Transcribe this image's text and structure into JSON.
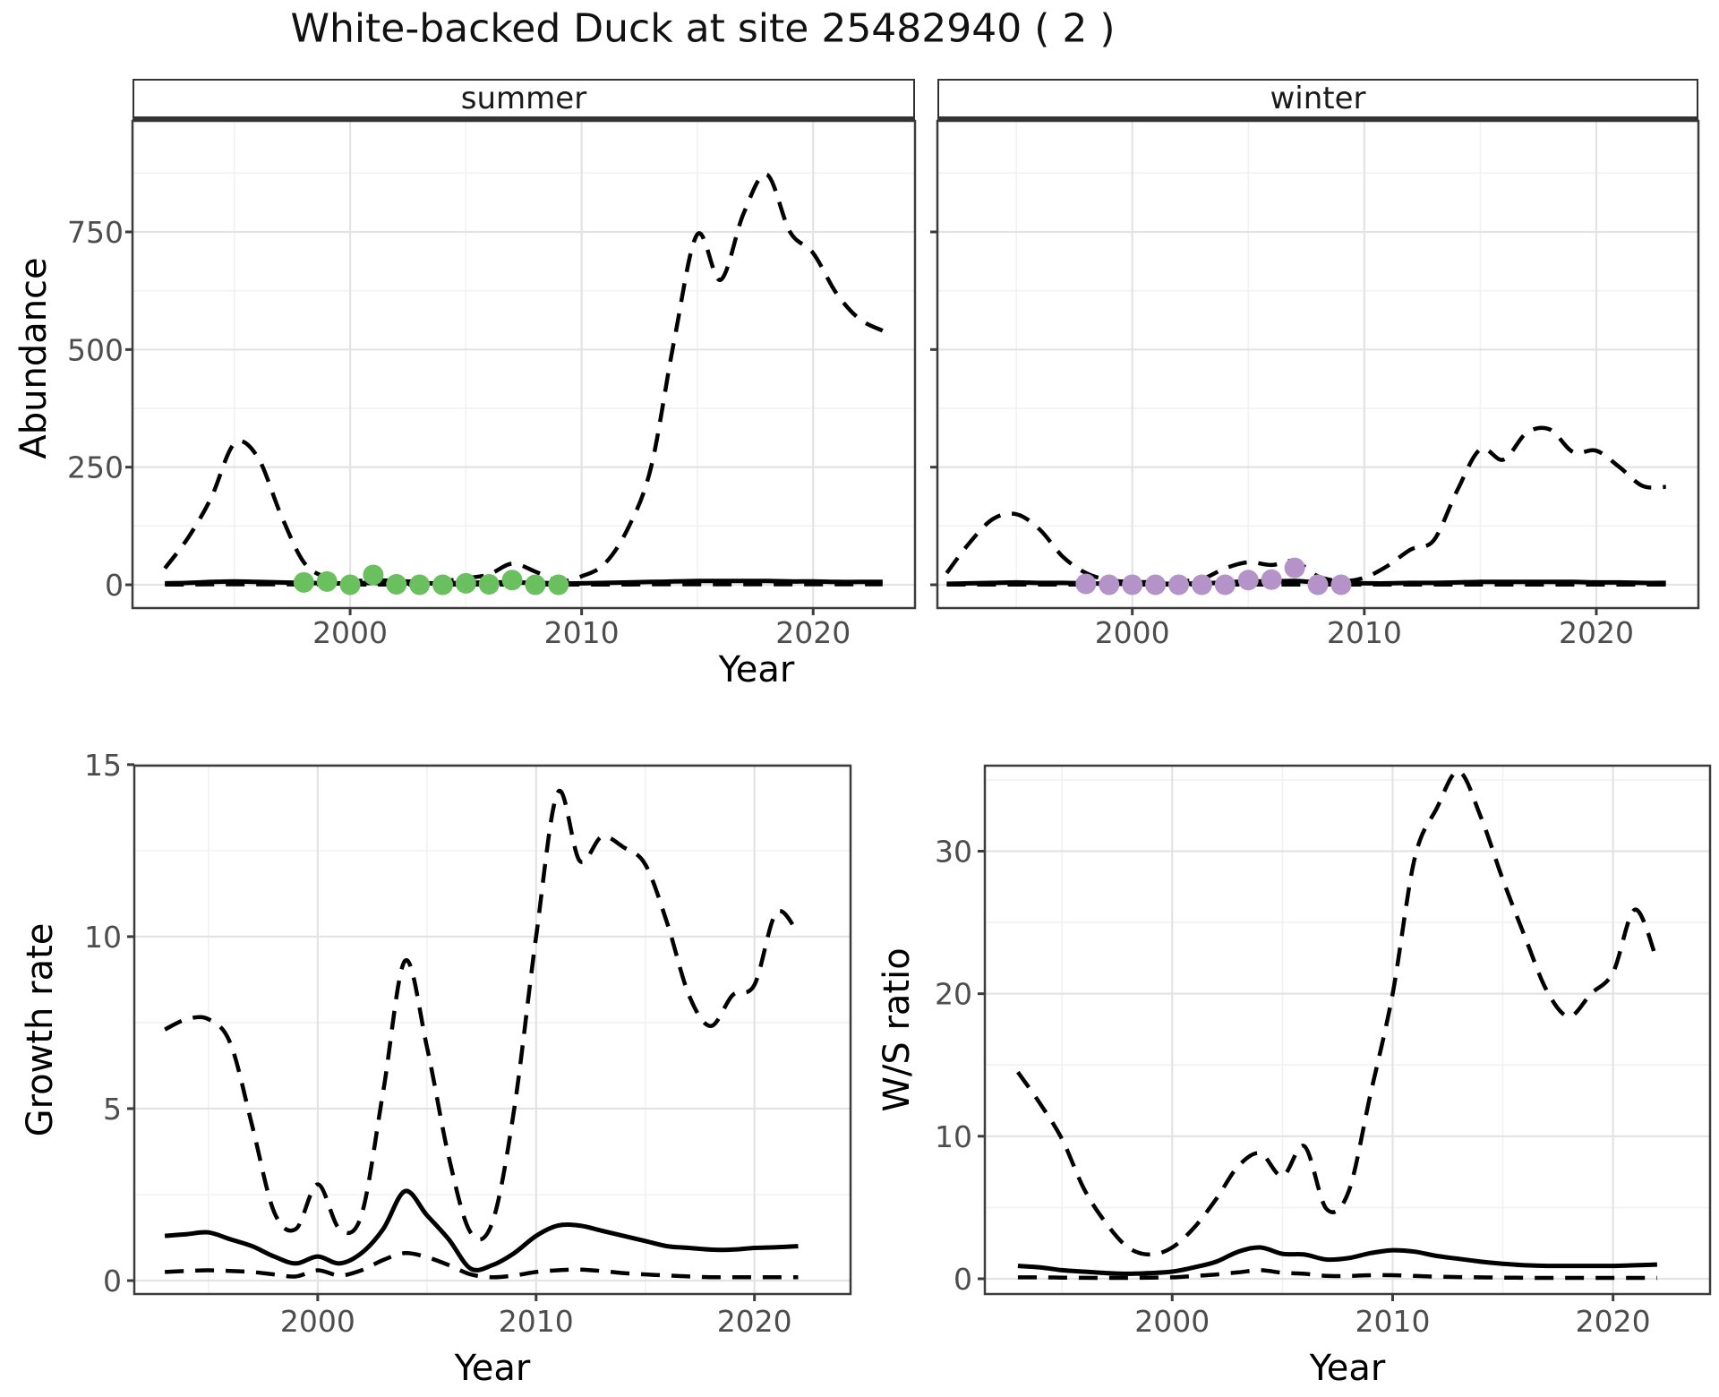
{
  "title": "White-backed Duck at site 25482940 ( 2 )",
  "facets": {
    "summer": "summer",
    "winter": "winter"
  },
  "axis_labels": {
    "abundance": "Abundance",
    "year": "Year",
    "growth_rate": "Growth rate",
    "ws_ratio": "W/S ratio"
  },
  "colors": {
    "summer_points": "#6abf5f",
    "winter_points": "#b493c8",
    "line": "#000000",
    "strip_background": "#d4d4d4",
    "grid_major": "#e3e3e3",
    "grid_minor": "#f1f1f1",
    "tick_label": "#4d4d4d",
    "panel_border": "#3c3c3c"
  },
  "chart_data": [
    {
      "name": "abundance_summer",
      "type": "line",
      "facet_label": "summer",
      "ylabel": "Abundance",
      "xlabel": "Year",
      "xlim": [
        1990.6,
        2024.4
      ],
      "ylim": [
        -49.5,
        986
      ],
      "xticks": [
        2000,
        2010,
        2020
      ],
      "xticks_minor": [
        1995,
        2005,
        2015
      ],
      "yticks": [
        0,
        250,
        500,
        750
      ],
      "yticks_minor": [
        125,
        375,
        625,
        875
      ],
      "show_y_tick_labels": true,
      "x": [
        1992,
        1993,
        1994,
        1995,
        1996,
        1997,
        1998,
        1999,
        2000,
        2001,
        2002,
        2003,
        2004,
        2005,
        2006,
        2007,
        2008,
        2009,
        2010,
        2011,
        2012,
        2013,
        2014,
        2015,
        2016,
        2017,
        2018,
        2019,
        2020,
        2021,
        2022,
        2023
      ],
      "series": [
        {
          "name": "upper_ci",
          "style": "dashed",
          "values": [
            35,
            100,
            185,
            300,
            272,
            150,
            48,
            15,
            8,
            10,
            8,
            7,
            8,
            14,
            22,
            45,
            28,
            8,
            18,
            45,
            120,
            250,
            520,
            745,
            648,
            790,
            872,
            750,
            705,
            620,
            565,
            540
          ]
        },
        {
          "name": "mean",
          "style": "solid",
          "values": [
            3,
            4,
            6,
            7,
            6,
            5,
            4,
            3,
            3,
            4,
            3,
            3,
            3,
            4,
            5,
            5,
            4,
            3,
            3,
            4,
            5,
            6,
            7,
            8,
            8,
            8,
            8,
            7,
            7,
            6,
            6,
            6
          ]
        },
        {
          "name": "lower_ci",
          "style": "dashed",
          "values": [
            0.5,
            0.5,
            1,
            1,
            1,
            1,
            0.5,
            0.5,
            0.5,
            0.5,
            0.5,
            0.5,
            0.5,
            0.5,
            0.5,
            0.5,
            0.5,
            0.5,
            0.5,
            0.5,
            0.5,
            1,
            1,
            1,
            1,
            1,
            1,
            1,
            1,
            1,
            1,
            1
          ]
        }
      ],
      "points": {
        "name": "observed_summer_counts",
        "color": "#6abf5f",
        "x": [
          1998,
          1999,
          2000,
          2001,
          2002,
          2003,
          2004,
          2005,
          2006,
          2007,
          2008,
          2009
        ],
        "values": [
          5,
          7,
          0,
          21,
          1,
          0,
          0,
          3,
          1,
          10,
          0,
          0
        ]
      }
    },
    {
      "name": "abundance_winter",
      "type": "line",
      "facet_label": "winter",
      "ylabel": "Abundance",
      "xlabel": "Year",
      "xlim": [
        1991.6,
        2024.4
      ],
      "ylim": [
        -49.5,
        986
      ],
      "xticks": [
        2000,
        2010,
        2020
      ],
      "xticks_minor": [
        1995,
        2005,
        2015
      ],
      "yticks": [
        0,
        250,
        500,
        750
      ],
      "yticks_minor": [
        125,
        375,
        625,
        875
      ],
      "show_y_tick_labels": false,
      "x": [
        1992,
        1993,
        1994,
        1995,
        1996,
        1997,
        1998,
        1999,
        2000,
        2001,
        2002,
        2003,
        2004,
        2005,
        2006,
        2007,
        2008,
        2009,
        2010,
        2011,
        2012,
        2013,
        2014,
        2015,
        2016,
        2017,
        2018,
        2019,
        2020,
        2021,
        2022,
        2023
      ],
      "series": [
        {
          "name": "upper_ci",
          "style": "dashed",
          "values": [
            25,
            90,
            140,
            150,
            118,
            60,
            25,
            10,
            6,
            6,
            8,
            12,
            35,
            48,
            42,
            50,
            18,
            8,
            15,
            40,
            75,
            95,
            200,
            288,
            266,
            323,
            330,
            282,
            285,
            250,
            210,
            208
          ]
        },
        {
          "name": "mean",
          "style": "solid",
          "values": [
            2,
            3,
            4,
            5,
            4,
            4,
            3,
            2,
            2,
            2,
            2,
            3,
            5,
            7,
            7,
            8,
            5,
            3,
            3,
            3,
            4,
            4,
            5,
            6,
            6,
            6,
            6,
            6,
            5,
            5,
            4,
            4
          ]
        },
        {
          "name": "lower_ci",
          "style": "dashed",
          "values": [
            0.5,
            0.5,
            0.5,
            0.5,
            0.5,
            0.5,
            0.5,
            0.5,
            0.5,
            0.5,
            0.5,
            0.5,
            0.5,
            0.5,
            0.5,
            0.5,
            0.5,
            0.5,
            0.5,
            0.5,
            0.5,
            0.5,
            0.5,
            0.5,
            0.5,
            0.5,
            0.5,
            0.5,
            0.5,
            0.5,
            0.5,
            0.5
          ]
        }
      ],
      "points": {
        "name": "observed_winter_counts",
        "color": "#b493c8",
        "x": [
          1998,
          1999,
          2000,
          2001,
          2002,
          2003,
          2004,
          2005,
          2006,
          2007,
          2008,
          2009
        ],
        "values": [
          2,
          0,
          0,
          0,
          0,
          0,
          0,
          10,
          11,
          36,
          0,
          0
        ]
      }
    },
    {
      "name": "growth_rate",
      "type": "line",
      "facet_label": "",
      "ylabel": "Growth rate",
      "xlabel": "Year",
      "xlim": [
        1991.6,
        2024.4
      ],
      "ylim": [
        -0.39,
        14.97
      ],
      "xticks": [
        2000,
        2010,
        2020
      ],
      "xticks_minor": [
        1995,
        2005,
        2015
      ],
      "yticks": [
        0,
        5,
        10,
        15
      ],
      "yticks_minor": [
        2.5,
        7.5,
        12.5
      ],
      "show_y_tick_labels": true,
      "x": [
        1993,
        1994,
        1995,
        1996,
        1997,
        1998,
        1999,
        2000,
        2001,
        2002,
        2003,
        2004,
        2005,
        2006,
        2007,
        2008,
        2009,
        2010,
        2011,
        2012,
        2013,
        2014,
        2015,
        2016,
        2017,
        2018,
        2019,
        2020,
        2021,
        2022
      ],
      "series": [
        {
          "name": "upper_ci",
          "style": "dashed",
          "values": [
            7.3,
            7.6,
            7.6,
            6.9,
            4.5,
            2.0,
            1.5,
            2.8,
            1.5,
            1.9,
            5.5,
            9.3,
            6.8,
            3.6,
            1.4,
            1.7,
            5.0,
            10.0,
            14.2,
            12.2,
            12.9,
            12.6,
            12.1,
            10.4,
            8.3,
            7.4,
            8.3,
            8.6,
            10.7,
            10.1
          ]
        },
        {
          "name": "mean",
          "style": "solid",
          "values": [
            1.3,
            1.35,
            1.4,
            1.2,
            1.0,
            0.7,
            0.5,
            0.7,
            0.5,
            0.8,
            1.5,
            2.6,
            1.9,
            1.2,
            0.35,
            0.45,
            0.8,
            1.3,
            1.6,
            1.6,
            1.45,
            1.3,
            1.15,
            1.0,
            0.95,
            0.9,
            0.9,
            0.95,
            0.97,
            1.0
          ]
        },
        {
          "name": "lower_ci",
          "style": "dashed",
          "values": [
            0.25,
            0.28,
            0.3,
            0.28,
            0.25,
            0.18,
            0.12,
            0.3,
            0.15,
            0.3,
            0.6,
            0.8,
            0.68,
            0.45,
            0.18,
            0.1,
            0.15,
            0.25,
            0.3,
            0.32,
            0.28,
            0.22,
            0.18,
            0.15,
            0.12,
            0.1,
            0.1,
            0.1,
            0.1,
            0.1
          ]
        }
      ]
    },
    {
      "name": "ws_ratio",
      "type": "line",
      "facet_label": "",
      "ylabel": "W/S ratio",
      "xlabel": "Year",
      "xlim": [
        1991.5,
        2024.4
      ],
      "ylim": [
        -1.07,
        36.0
      ],
      "xticks": [
        2000,
        2010,
        2020
      ],
      "xticks_minor": [
        1995,
        2005,
        2015
      ],
      "yticks": [
        0,
        10,
        20,
        30
      ],
      "yticks_minor": [
        5,
        15,
        25,
        35
      ],
      "show_y_tick_labels": true,
      "x": [
        1993,
        1994,
        1995,
        1996,
        1997,
        1998,
        1999,
        2000,
        2001,
        2002,
        2003,
        2004,
        2005,
        2006,
        2007,
        2008,
        2009,
        2010,
        2011,
        2012,
        2013,
        2014,
        2015,
        2016,
        2017,
        2018,
        2019,
        2020,
        2021,
        2022
      ],
      "series": [
        {
          "name": "upper_ci",
          "style": "dashed",
          "values": [
            14.5,
            12.3,
            9.8,
            6.3,
            3.9,
            2.2,
            1.7,
            2.2,
            3.6,
            5.6,
            7.9,
            8.8,
            7.2,
            9.3,
            4.9,
            6.1,
            13.0,
            20.0,
            29.5,
            33.0,
            35.6,
            32.4,
            28.0,
            24.0,
            20.2,
            18.4,
            20.0,
            21.5,
            25.9,
            22.3
          ]
        },
        {
          "name": "mean",
          "style": "solid",
          "values": [
            0.9,
            0.8,
            0.6,
            0.5,
            0.4,
            0.35,
            0.4,
            0.5,
            0.8,
            1.2,
            1.9,
            2.2,
            1.75,
            1.7,
            1.35,
            1.45,
            1.8,
            2.0,
            1.9,
            1.6,
            1.4,
            1.2,
            1.05,
            0.95,
            0.9,
            0.9,
            0.9,
            0.9,
            0.95,
            1.0
          ]
        },
        {
          "name": "lower_ci",
          "style": "dashed",
          "values": [
            0.1,
            0.1,
            0.08,
            0.07,
            0.06,
            0.06,
            0.08,
            0.1,
            0.2,
            0.3,
            0.45,
            0.6,
            0.42,
            0.35,
            0.2,
            0.2,
            0.25,
            0.25,
            0.2,
            0.15,
            0.12,
            0.1,
            0.08,
            0.07,
            0.06,
            0.06,
            0.06,
            0.06,
            0.06,
            0.06
          ]
        }
      ]
    }
  ]
}
